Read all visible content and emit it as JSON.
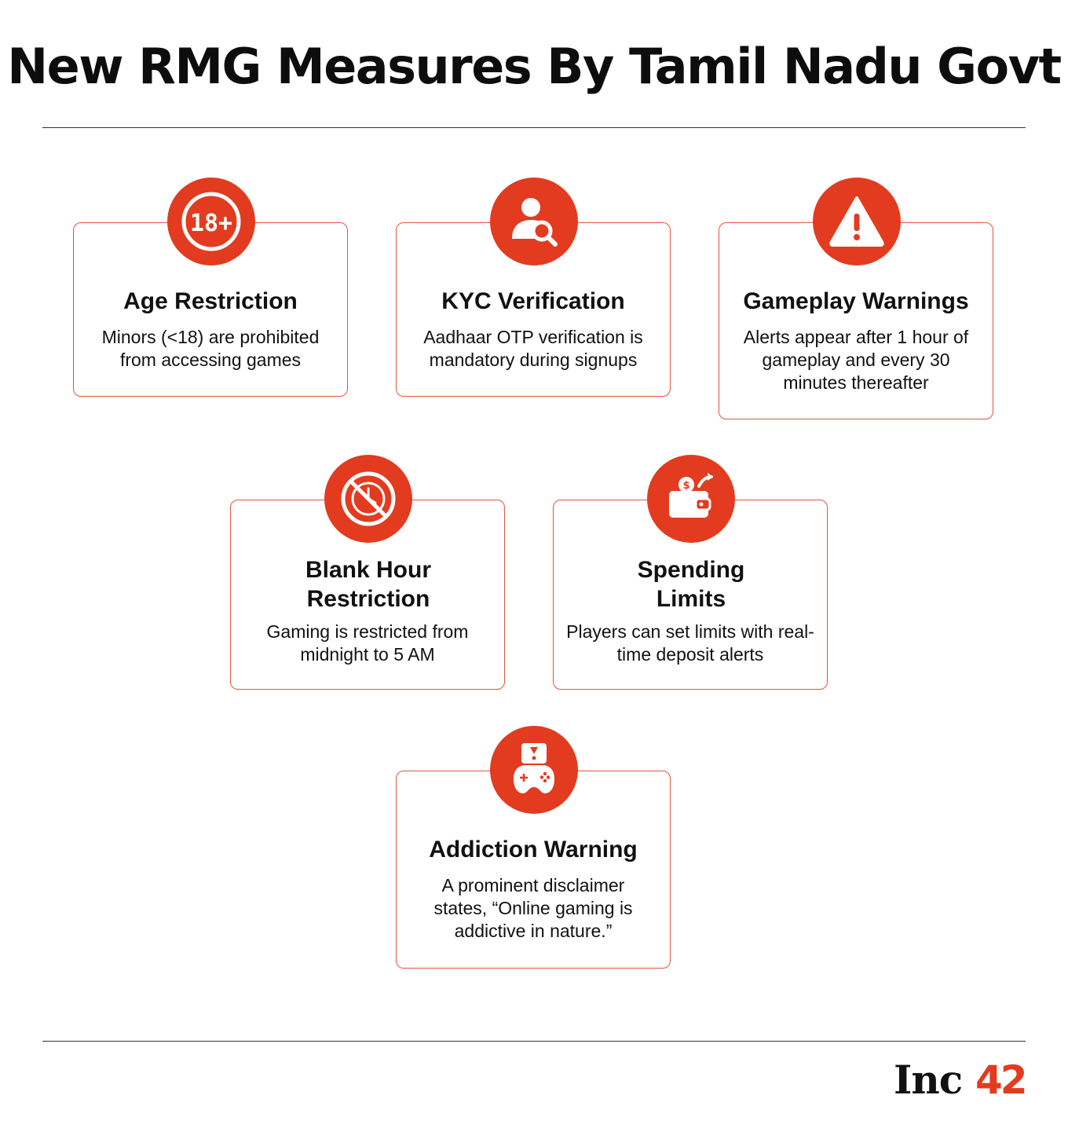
{
  "title": "New RMG Measures By Tamil Nadu Govt",
  "accent_color": "#e33b1f",
  "cards": [
    {
      "title": "Age Restriction",
      "text": "Minors (<18) are prohibited from accessing games",
      "icon": "18-plus-icon",
      "icon_text": "18+"
    },
    {
      "title": "KYC Verification",
      "text": "Aadhaar OTP verification is mandatory during signups",
      "icon": "user-search-icon"
    },
    {
      "title": "Gameplay Warnings",
      "text": "Alerts appear after 1 hour of gameplay and every 30 minutes thereafter",
      "icon": "warning-triangle-icon"
    },
    {
      "title": "Blank Hour Restriction",
      "text": "Gaming is restricted from midnight to 5 AM",
      "icon": "no-clock-icon"
    },
    {
      "title": "Spending Limits",
      "text": "Players can set limits with real-time deposit alerts",
      "icon": "wallet-coin-icon"
    },
    {
      "title": "Addiction Warning",
      "text": "A prominent disclaimer states, “Online gaming is addictive in nature.”",
      "icon": "game-controller-warning-icon"
    }
  ],
  "logo": {
    "prefix": "Inc",
    "number": "42"
  }
}
